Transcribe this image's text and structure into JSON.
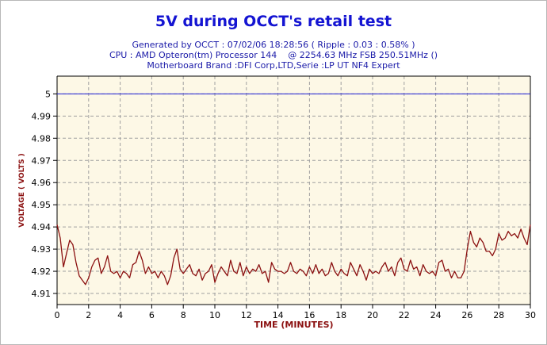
{
  "header": {
    "title": "5V during OCCT's retail test",
    "lines": [
      "Generated by OCCT : 07/02/06 18:28:56 ( Ripple : 0.03 : 0.58% )",
      "CPU : AMD Opteron(tm) Processor 144    @ 2254.63 MHz FSB 250.51MHz ()",
      "Motherboard Brand :DFI Corp,LTD,Serie :LP UT NF4 Expert"
    ]
  },
  "colors": {
    "plot_background": "#fdf8e6",
    "grid": "#a0a0a0",
    "series": "#8b1010",
    "reference_line": "#1f1fd6",
    "axis_label": "#8b1010",
    "tick_label": "#000000"
  },
  "chart_data": {
    "type": "line",
    "title": "5V during OCCT's retail test",
    "xlabel": "TIME (MINUTES)",
    "ylabel": "VOLTAGE ( VOLTS )",
    "xlim": [
      0,
      30
    ],
    "ylim": [
      4.905,
      5.008
    ],
    "xticks": [
      0,
      2,
      4,
      6,
      8,
      10,
      12,
      14,
      16,
      18,
      20,
      22,
      24,
      26,
      28,
      30
    ],
    "yticks": [
      4.91,
      4.92,
      4.93,
      4.94,
      4.95,
      4.96,
      4.97,
      4.98,
      4.99,
      5
    ],
    "grid": true,
    "legend": "none",
    "reference_line": {
      "y": 5.0
    },
    "series": [
      {
        "x": [
          0,
          0.2,
          0.4,
          0.6,
          0.8,
          1.0,
          1.2,
          1.4,
          1.6,
          1.8,
          2.0,
          2.2,
          2.4,
          2.6,
          2.8,
          3.0,
          3.2,
          3.4,
          3.6,
          3.8,
          4.0,
          4.2,
          4.4,
          4.6,
          4.8,
          5.0,
          5.2,
          5.4,
          5.6,
          5.8,
          6.0,
          6.2,
          6.4,
          6.6,
          6.8,
          7.0,
          7.2,
          7.4,
          7.6,
          7.8,
          8.0,
          8.2,
          8.4,
          8.6,
          8.8,
          9.0,
          9.2,
          9.4,
          9.6,
          9.8,
          10.0,
          10.2,
          10.4,
          10.6,
          10.8,
          11.0,
          11.2,
          11.4,
          11.6,
          11.8,
          12.0,
          12.2,
          12.4,
          12.6,
          12.8,
          13.0,
          13.2,
          13.4,
          13.6,
          13.8,
          14.0,
          14.2,
          14.4,
          14.6,
          14.8,
          15.0,
          15.2,
          15.4,
          15.6,
          15.8,
          16.0,
          16.2,
          16.4,
          16.6,
          16.8,
          17.0,
          17.2,
          17.4,
          17.6,
          17.8,
          18.0,
          18.2,
          18.4,
          18.6,
          18.8,
          19.0,
          19.2,
          19.4,
          19.6,
          19.8,
          20.0,
          20.2,
          20.4,
          20.6,
          20.8,
          21.0,
          21.2,
          21.4,
          21.6,
          21.8,
          22.0,
          22.2,
          22.4,
          22.6,
          22.8,
          23.0,
          23.2,
          23.4,
          23.6,
          23.8,
          24.0,
          24.2,
          24.4,
          24.6,
          24.8,
          25.0,
          25.2,
          25.4,
          25.6,
          25.8,
          26.0,
          26.2,
          26.4,
          26.6,
          26.8,
          27.0,
          27.2,
          27.4,
          27.6,
          27.8,
          28.0,
          28.2,
          28.4,
          28.6,
          28.8,
          29.0,
          29.2,
          29.4,
          29.6,
          29.8,
          30.0
        ],
        "y": [
          4.941,
          4.935,
          4.922,
          4.928,
          4.934,
          4.932,
          4.924,
          4.918,
          4.916,
          4.914,
          4.917,
          4.922,
          4.925,
          4.926,
          4.919,
          4.922,
          4.927,
          4.92,
          4.919,
          4.92,
          4.917,
          4.92,
          4.919,
          4.917,
          4.923,
          4.924,
          4.929,
          4.925,
          4.919,
          4.922,
          4.919,
          4.92,
          4.917,
          4.92,
          4.918,
          4.914,
          4.918,
          4.926,
          4.93,
          4.921,
          4.919,
          4.921,
          4.923,
          4.919,
          4.918,
          4.921,
          4.916,
          4.919,
          4.92,
          4.923,
          4.915,
          4.919,
          4.922,
          4.92,
          4.918,
          4.925,
          4.92,
          4.919,
          4.924,
          4.918,
          4.922,
          4.919,
          4.921,
          4.92,
          4.923,
          4.919,
          4.92,
          4.915,
          4.924,
          4.921,
          4.92,
          4.92,
          4.919,
          4.92,
          4.924,
          4.92,
          4.919,
          4.921,
          4.92,
          4.918,
          4.922,
          4.919,
          4.923,
          4.919,
          4.921,
          4.918,
          4.919,
          4.924,
          4.92,
          4.918,
          4.921,
          4.919,
          4.918,
          4.924,
          4.921,
          4.918,
          4.923,
          4.92,
          4.916,
          4.921,
          4.919,
          4.92,
          4.919,
          4.922,
          4.924,
          4.92,
          4.922,
          4.918,
          4.924,
          4.926,
          4.921,
          4.92,
          4.925,
          4.921,
          4.922,
          4.918,
          4.923,
          4.92,
          4.919,
          4.92,
          4.918,
          4.924,
          4.925,
          4.92,
          4.921,
          4.917,
          4.92,
          4.917,
          4.917,
          4.92,
          4.93,
          4.938,
          4.933,
          4.931,
          4.935,
          4.933,
          4.929,
          4.929,
          4.927,
          4.93,
          4.937,
          4.934,
          4.935,
          4.938,
          4.936,
          4.937,
          4.935,
          4.939,
          4.935,
          4.932,
          4.941
        ]
      }
    ]
  }
}
